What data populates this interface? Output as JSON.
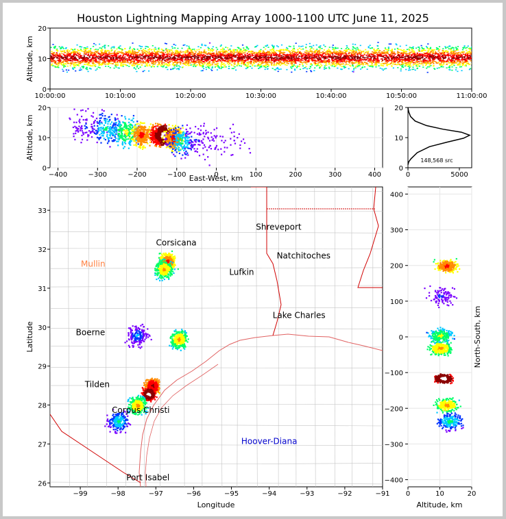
{
  "title": "Houston Lightning Mapping Array 1000-1100 UTC June 11, 2025",
  "colors": {
    "density_scale": [
      "#7a00ff",
      "#0033ff",
      "#00c8ff",
      "#00ff66",
      "#ffff00",
      "#ff8c00",
      "#ff0000",
      "#8b0000",
      "#ffffff"
    ],
    "state_borders": "#d00000",
    "county_lines": "#b4b4b4",
    "coastline": "#e06060"
  },
  "chart_data": [
    {
      "id": "time_height",
      "type": "heatmap",
      "title": "",
      "xlabel": "",
      "ylabel": "Altitude, km",
      "x_ticks": [
        "10:00:00",
        "10:10:00",
        "10:20:00",
        "10:30:00",
        "10:40:00",
        "10:50:00",
        "11:00:00"
      ],
      "y_ticks": [
        "0",
        "10",
        "20"
      ],
      "ylim": [
        0,
        20
      ],
      "description_series": [
        {
          "altitude_km": 10.5,
          "intensity": "max",
          "x_range": [
            "10:00:00",
            "11:00:00"
          ]
        },
        {
          "altitude_km": 6,
          "intensity": "low",
          "x_range": [
            "10:00:00",
            "11:00:00"
          ]
        },
        {
          "altitude_km": 15,
          "intensity": "low",
          "x_range": [
            "10:00:00",
            "11:00:00"
          ]
        }
      ]
    },
    {
      "id": "east_west_altitude",
      "type": "heatmap",
      "xlabel": "East-West, km",
      "ylabel": "Altitude, km",
      "x_ticks": [
        "−400",
        "−300",
        "−200",
        "−100",
        "0",
        "100",
        "200",
        "300",
        "400"
      ],
      "y_ticks": [
        "0",
        "10",
        "20"
      ],
      "xlim": [
        -420,
        420
      ],
      "ylim": [
        0,
        20
      ],
      "cells": [
        {
          "x": -330,
          "z": 14,
          "level": 1
        },
        {
          "x": -280,
          "z": 13,
          "level": 3
        },
        {
          "x": -230,
          "z": 12,
          "level": 4
        },
        {
          "x": -190,
          "z": 11,
          "level": 6
        },
        {
          "x": -150,
          "z": 11,
          "level": 7
        },
        {
          "x": -135,
          "z": 11,
          "level": 8
        },
        {
          "x": -110,
          "z": 10,
          "level": 6
        },
        {
          "x": -90,
          "z": 9,
          "level": 3
        },
        {
          "x": -50,
          "z": 10,
          "level": 1
        },
        {
          "x": 30,
          "z": 9,
          "level": 0
        }
      ]
    },
    {
      "id": "altitude_histogram",
      "type": "line",
      "x_ticks": [
        "0",
        "5000"
      ],
      "y_ticks": [
        "0",
        "10",
        "20"
      ],
      "xlim": [
        0,
        6200
      ],
      "ylim": [
        0,
        20
      ],
      "annotation": "148,568 src",
      "x": [
        0,
        80,
        300,
        900,
        2100,
        3800,
        5400,
        6000,
        5200,
        3400,
        1800,
        700,
        250,
        80,
        20,
        0
      ],
      "y": [
        1,
        2,
        3,
        5,
        7,
        8.5,
        9.8,
        10.8,
        11.8,
        12.8,
        14,
        15.5,
        17,
        18.5,
        19.5,
        20
      ]
    },
    {
      "id": "plan_view",
      "type": "heatmap",
      "xlabel": "Longitude",
      "ylabel": "Latitude",
      "x_ticks": [
        "−99",
        "−98",
        "−97",
        "−96",
        "−95",
        "−94",
        "−93",
        "−92",
        "−91"
      ],
      "y_ticks": [
        "26",
        "27",
        "28",
        "29",
        "30",
        "31",
        "32",
        "33"
      ],
      "xlim": [
        -99.8,
        -91
      ],
      "ylim": [
        25.9,
        33.6
      ],
      "places": [
        {
          "name": "Shreveport",
          "lon": -93.75,
          "lat": 32.5,
          "color": "#000000"
        },
        {
          "name": "Corsicana",
          "lon": -96.46,
          "lat": 32.1,
          "color": "#000000"
        },
        {
          "name": "Mullin",
          "lon": -98.66,
          "lat": 31.55,
          "color": "#ff8040"
        },
        {
          "name": "Natchitoches",
          "lon": -93.09,
          "lat": 31.76,
          "color": "#000000"
        },
        {
          "name": "Lufkin",
          "lon": -94.73,
          "lat": 31.34,
          "color": "#000000"
        },
        {
          "name": "Lake Charles",
          "lon": -93.21,
          "lat": 30.23,
          "color": "#000000"
        },
        {
          "name": "Boerne",
          "lon": -98.73,
          "lat": 29.79,
          "color": "#000000"
        },
        {
          "name": "Tilden",
          "lon": -98.55,
          "lat": 28.46,
          "color": "#000000"
        },
        {
          "name": "Corpus Christi",
          "lon": -97.4,
          "lat": 27.8,
          "color": "#000000"
        },
        {
          "name": "Hoover-Diana",
          "lon": -94.0,
          "lat": 27.0,
          "color": "#0000cc"
        },
        {
          "name": "Port Isabel",
          "lon": -97.21,
          "lat": 26.07,
          "color": "#000000"
        }
      ],
      "cells": [
        {
          "lon": -96.7,
          "lat": 31.7,
          "level": 6
        },
        {
          "lon": -96.8,
          "lat": 31.5,
          "level": 5
        },
        {
          "lon": -97.1,
          "lat": 28.5,
          "level": 7
        },
        {
          "lon": -97.2,
          "lat": 28.3,
          "level": 8
        },
        {
          "lon": -97.5,
          "lat": 28.0,
          "level": 5
        },
        {
          "lon": -98.0,
          "lat": 27.6,
          "level": 3
        },
        {
          "lon": -96.4,
          "lat": 29.7,
          "level": 5
        },
        {
          "lon": -97.5,
          "lat": 29.8,
          "level": 2
        }
      ]
    },
    {
      "id": "north_south_altitude",
      "type": "heatmap",
      "xlabel": "Altitude, km",
      "ylabel": "North-South, km",
      "x_ticks": [
        "0",
        "10",
        "20"
      ],
      "y_ticks": [
        "−400",
        "−300",
        "−200",
        "−100",
        "0",
        "100",
        "200",
        "300",
        "400"
      ],
      "xlim": [
        0,
        20
      ],
      "ylim": [
        -420,
        420
      ],
      "cells": [
        {
          "z": 12,
          "y": 200,
          "level": 6
        },
        {
          "z": 10,
          "y": 115,
          "level": 1
        },
        {
          "z": 10,
          "y": 5,
          "level": 4
        },
        {
          "z": 10,
          "y": -30,
          "level": 5
        },
        {
          "z": 11,
          "y": -115,
          "level": 8
        },
        {
          "z": 12,
          "y": -190,
          "level": 5
        },
        {
          "z": 13,
          "y": -235,
          "level": 3
        }
      ]
    }
  ]
}
